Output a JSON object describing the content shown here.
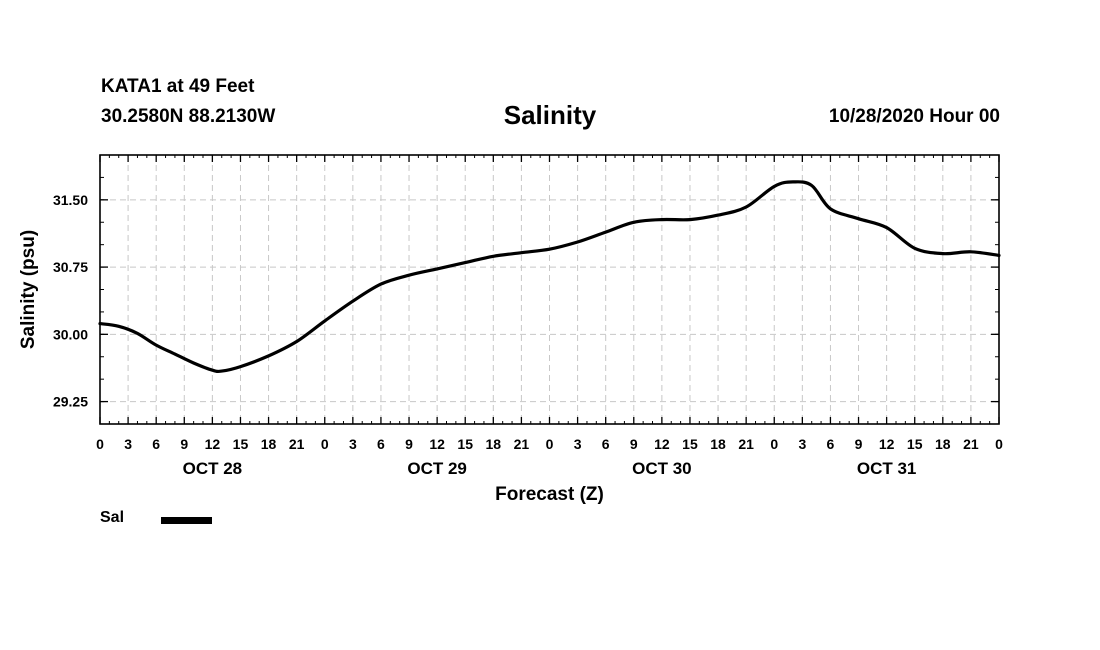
{
  "header": {
    "station": "KATA1 at 49 Feet",
    "coords": "30.2580N 88.2130W",
    "title": "Salinity",
    "date": "10/28/2020 Hour 00"
  },
  "legend": {
    "label": "Sal",
    "color": "#000000"
  },
  "chart_data": {
    "type": "line",
    "title": "Salinity",
    "xlabel": "Forecast (Z)",
    "ylabel": "Salinity (psu)",
    "grid": true,
    "xlim": [
      0,
      96
    ],
    "ylim": [
      29.0,
      32.0
    ],
    "yticks": [
      29.25,
      30.0,
      30.75,
      31.5
    ],
    "ytick_labels": [
      "29.25",
      "30.00",
      "30.75",
      "31.50"
    ],
    "xticks": [
      0,
      3,
      6,
      9,
      12,
      15,
      18,
      21,
      24,
      27,
      30,
      33,
      36,
      39,
      42,
      45,
      48,
      51,
      54,
      57,
      60,
      63,
      66,
      69,
      72,
      75,
      78,
      81,
      84,
      87,
      90,
      93,
      96
    ],
    "xtick_labels": [
      "0",
      "3",
      "6",
      "9",
      "12",
      "15",
      "18",
      "21",
      "0",
      "3",
      "6",
      "9",
      "12",
      "15",
      "18",
      "21",
      "0",
      "3",
      "6",
      "9",
      "12",
      "15",
      "18",
      "21",
      "0",
      "3",
      "6",
      "9",
      "12",
      "15",
      "18",
      "21",
      "0"
    ],
    "day_labels": [
      {
        "hour": 12,
        "text": "OCT 28"
      },
      {
        "hour": 36,
        "text": "OCT 29"
      },
      {
        "hour": 60,
        "text": "OCT 30"
      },
      {
        "hour": 84,
        "text": "OCT 31"
      }
    ],
    "series": [
      {
        "name": "Sal",
        "color": "#000000",
        "x": [
          0,
          2,
          4,
          6,
          8,
          10,
          12,
          13,
          15,
          18,
          21,
          24,
          27,
          30,
          33,
          36,
          39,
          42,
          45,
          48,
          51,
          54,
          57,
          60,
          63,
          66,
          69,
          72,
          74,
          76,
          78,
          81,
          84,
          87,
          90,
          93,
          96
        ],
        "y": [
          30.12,
          30.09,
          30.01,
          29.88,
          29.78,
          29.68,
          29.6,
          29.59,
          29.64,
          29.76,
          29.92,
          30.15,
          30.37,
          30.56,
          30.66,
          30.73,
          30.8,
          30.87,
          30.91,
          30.95,
          31.03,
          31.14,
          31.25,
          31.28,
          31.28,
          31.33,
          31.42,
          31.65,
          31.7,
          31.66,
          31.4,
          31.29,
          31.19,
          30.96,
          30.9,
          30.92,
          30.88
        ]
      }
    ]
  }
}
